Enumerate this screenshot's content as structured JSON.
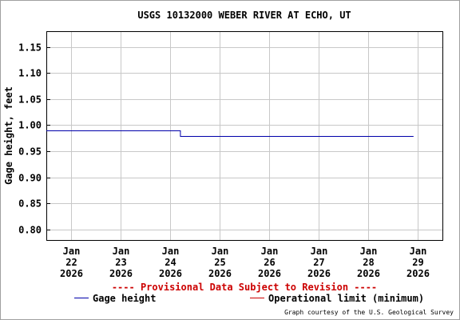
{
  "chart_data": {
    "type": "line",
    "title": "USGS 10132000 WEBER RIVER AT ECHO, UT",
    "ylabel": "Gage height, feet",
    "xlabel": "",
    "ylim": [
      0.78,
      1.18
    ],
    "yticks": [
      "1.15",
      "1.10",
      "1.05",
      "1.00",
      "0.95",
      "0.90",
      "0.85",
      "0.80"
    ],
    "ytick_values": [
      1.15,
      1.1,
      1.05,
      1.0,
      0.95,
      0.9,
      0.85,
      0.8
    ],
    "xlim_days": [
      "2026-01-21T12:00",
      "2026-01-29T12:00"
    ],
    "xticks": [
      {
        "date": "2026-01-22",
        "lines": [
          "Jan",
          "22",
          "2026"
        ]
      },
      {
        "date": "2026-01-23",
        "lines": [
          "Jan",
          "23",
          "2026"
        ]
      },
      {
        "date": "2026-01-24",
        "lines": [
          "Jan",
          "24",
          "2026"
        ]
      },
      {
        "date": "2026-01-25",
        "lines": [
          "Jan",
          "25",
          "2026"
        ]
      },
      {
        "date": "2026-01-26",
        "lines": [
          "Jan",
          "26",
          "2026"
        ]
      },
      {
        "date": "2026-01-27",
        "lines": [
          "Jan",
          "27",
          "2026"
        ]
      },
      {
        "date": "2026-01-28",
        "lines": [
          "Jan",
          "28",
          "2026"
        ]
      },
      {
        "date": "2026-01-29",
        "lines": [
          "Jan",
          "29",
          "2026"
        ]
      }
    ],
    "series": [
      {
        "name": "Gage height",
        "color": "#0000aa",
        "points": [
          {
            "x": "2026-01-21T12:00",
            "y": 0.99
          },
          {
            "x": "2026-01-24T05:00",
            "y": 0.99
          },
          {
            "x": "2026-01-24T05:00",
            "y": 0.98
          },
          {
            "x": "2026-01-28T22:00",
            "y": 0.98
          }
        ]
      }
    ],
    "grid": true,
    "notice": "---- Provisional Data Subject to Revision ----",
    "legend": [
      {
        "label": "Gage height",
        "color": "#0000aa"
      },
      {
        "label": "Operational limit (minimum)",
        "color": "#cc0000"
      }
    ],
    "legend_placement": "bottom",
    "credit": "Graph courtesy of the U.S. Geological Survey"
  }
}
